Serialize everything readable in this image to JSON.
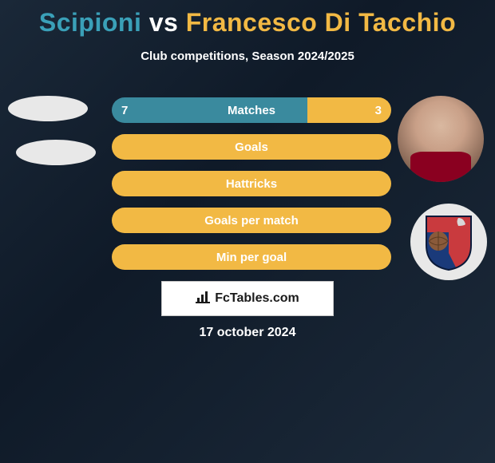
{
  "title": {
    "player1": "Scipioni",
    "vs": "vs",
    "player2": "Francesco Di Tacchio",
    "color_p1": "#3aa0b8",
    "color_vs": "#ffffff",
    "color_p2": "#f2b944"
  },
  "subtitle": "Club competitions, Season 2024/2025",
  "rows": [
    {
      "label": "Matches",
      "left_val": "7",
      "right_val": "3",
      "left_pct": 70,
      "right_pct": 30,
      "show_vals": true
    },
    {
      "label": "Goals",
      "left_val": "",
      "right_val": "",
      "left_pct": 0,
      "right_pct": 100,
      "show_vals": false
    },
    {
      "label": "Hattricks",
      "left_val": "",
      "right_val": "",
      "left_pct": 0,
      "right_pct": 100,
      "show_vals": false
    },
    {
      "label": "Goals per match",
      "left_val": "",
      "right_val": "",
      "left_pct": 0,
      "right_pct": 100,
      "show_vals": false
    },
    {
      "label": "Min per goal",
      "left_val": "",
      "right_val": "",
      "left_pct": 0,
      "right_pct": 100,
      "show_vals": false
    }
  ],
  "colors": {
    "left_bar": "#3a8a9e",
    "right_bar": "#f2b944",
    "bg_top": "#1a2838",
    "bg_bottom": "#0f1a28",
    "text": "#ffffff"
  },
  "logo_text": "FcTables.com",
  "date": "17 october 2024",
  "badge": {
    "shield_top_color": "#c93a3e",
    "shield_bottom_color": "#1a3a7a",
    "shield_center_color": "#3a5a9a",
    "ball_color": "#8a5a3a"
  }
}
